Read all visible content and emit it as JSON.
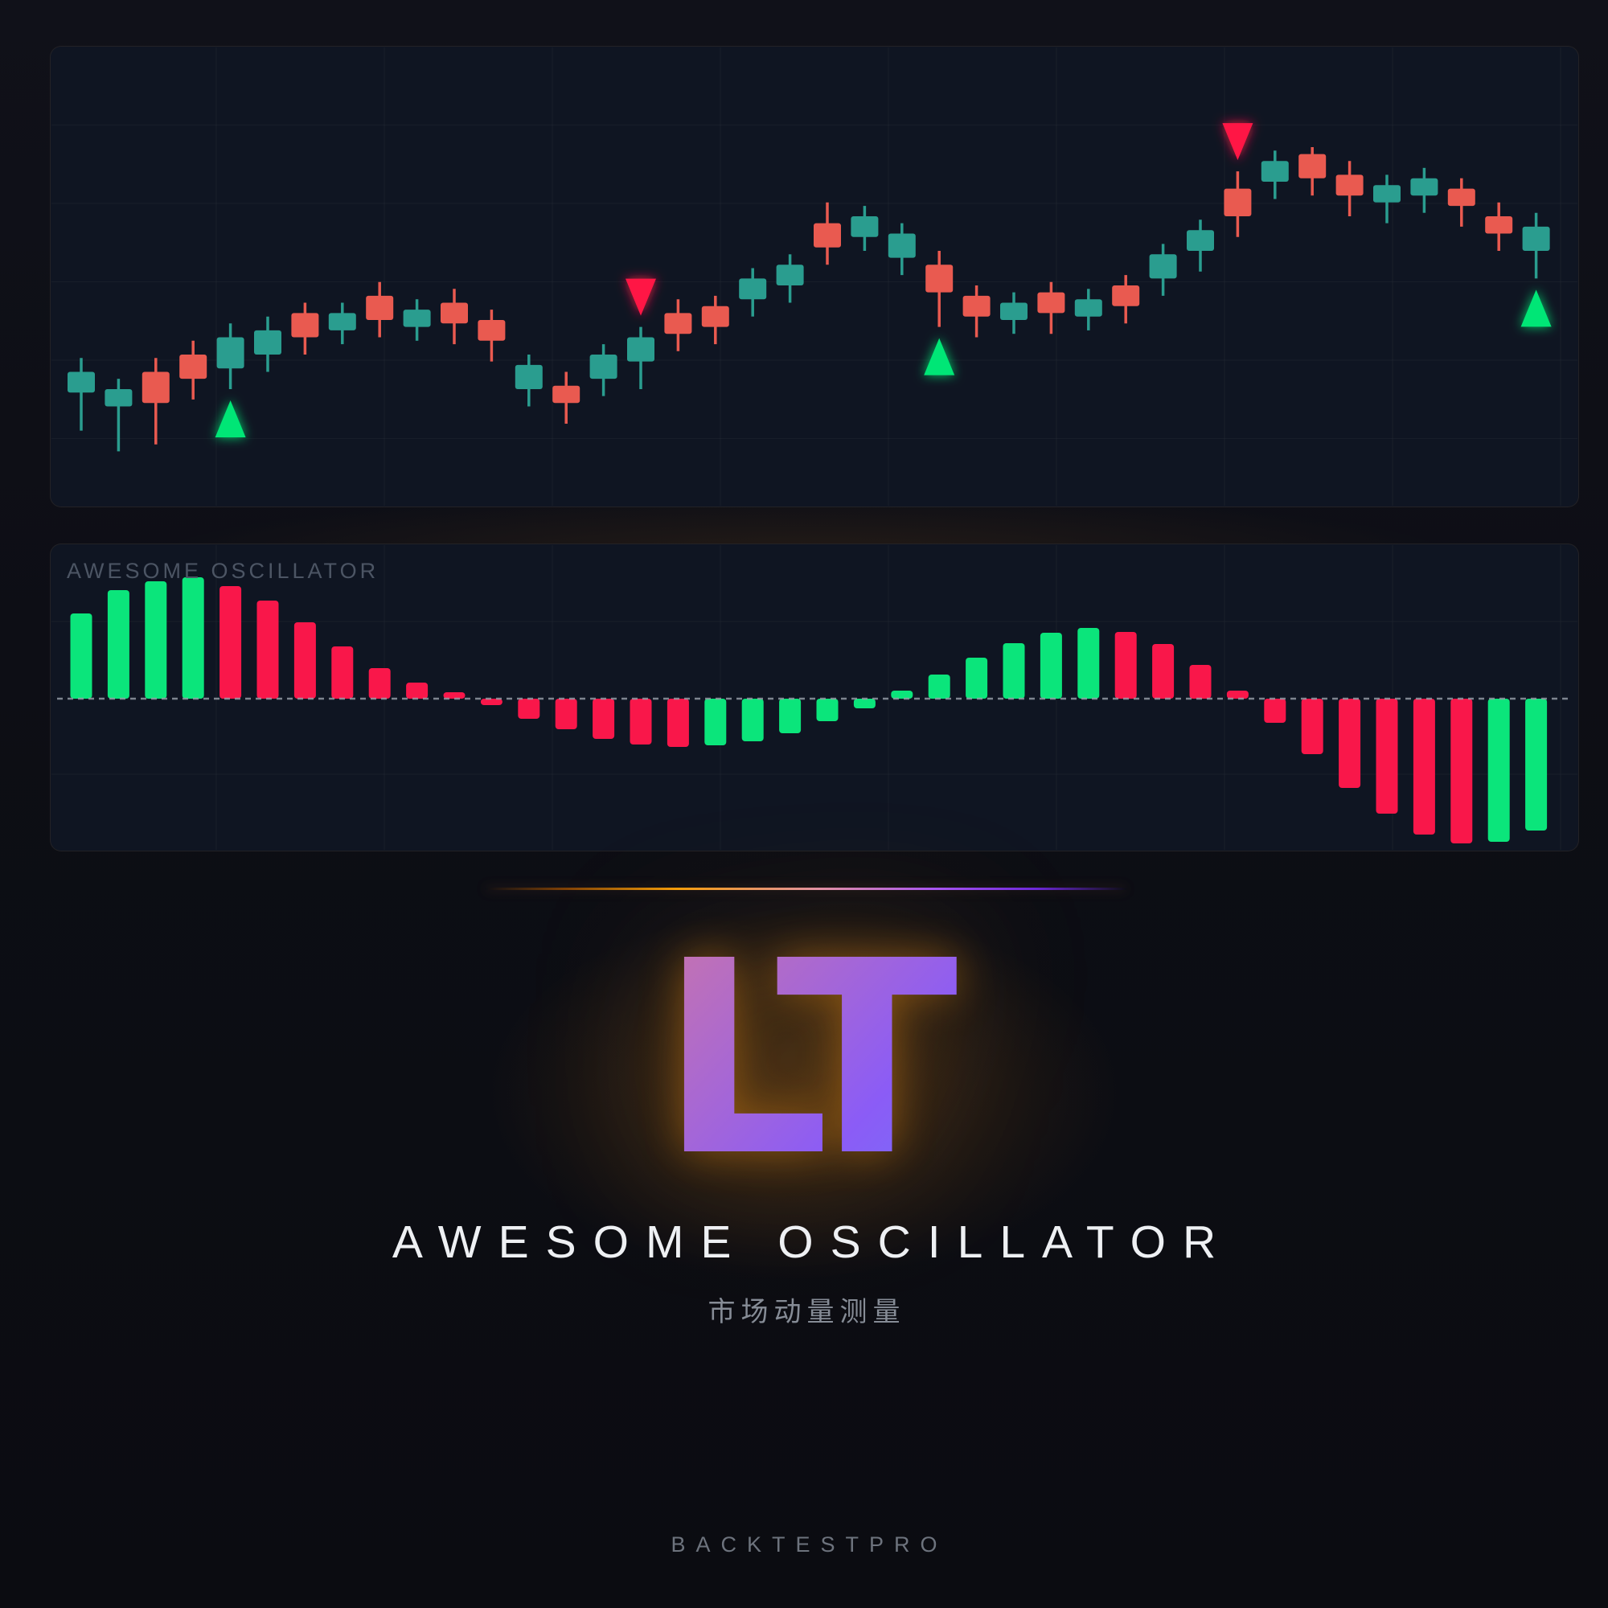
{
  "branding": {
    "logo_text": "LT",
    "title": "AWESOME OSCILLATOR",
    "subtitle_zh": "市场动量测量",
    "footer": "BACKTESTPRO"
  },
  "oscillator_panel": {
    "label": "AWESOME OSCILLATOR"
  },
  "colors": {
    "page_bg": "#0d0e15",
    "panel_bg": "#0f1522",
    "candle_up": "#2a9d8f",
    "candle_down": "#e95a50",
    "osc_up": "#0be57b",
    "osc_down": "#f9174a",
    "marker_buy": "#00e676",
    "marker_sell": "#ff1744",
    "zero_line": "#9aa1ab",
    "grid": "rgba(255,255,255,0.04)",
    "osc_label": "#4c5564",
    "logo_gradient": [
      "#f59e0b",
      "#d4799e",
      "#8b5cf6",
      "#38a4ff"
    ],
    "divider_gradient": [
      "#7c3f06",
      "#f59e0b",
      "#e292a8",
      "#a855f7",
      "#6d28d9"
    ]
  },
  "chart_data": [
    {
      "type": "candlestick",
      "panel": "price",
      "ylim": [
        0,
        100
      ],
      "grid": true,
      "candles_format": [
        "open",
        "close",
        "high",
        "low"
      ],
      "candles": [
        [
          29,
          35,
          39,
          18
        ],
        [
          25,
          30,
          33,
          12
        ],
        [
          35,
          26,
          39,
          14
        ],
        [
          40,
          33,
          44,
          27
        ],
        [
          36,
          45,
          49,
          30
        ],
        [
          40,
          47,
          51,
          35
        ],
        [
          52,
          45,
          55,
          40
        ],
        [
          47,
          52,
          55,
          43
        ],
        [
          57,
          50,
          61,
          45
        ],
        [
          48,
          53,
          56,
          44
        ],
        [
          55,
          49,
          59,
          43
        ],
        [
          50,
          44,
          53,
          38
        ],
        [
          30,
          37,
          40,
          25
        ],
        [
          31,
          26,
          35,
          20
        ],
        [
          33,
          40,
          43,
          28
        ],
        [
          38,
          45,
          48,
          30
        ],
        [
          52,
          46,
          56,
          41
        ],
        [
          54,
          48,
          57,
          43
        ],
        [
          56,
          62,
          65,
          51
        ],
        [
          60,
          66,
          69,
          55
        ],
        [
          78,
          71,
          84,
          66
        ],
        [
          74,
          80,
          83,
          70
        ],
        [
          68,
          75,
          78,
          63
        ],
        [
          66,
          58,
          70,
          48
        ],
        [
          57,
          51,
          60,
          45
        ],
        [
          50,
          55,
          58,
          46
        ],
        [
          58,
          52,
          61,
          46
        ],
        [
          51,
          56,
          59,
          47
        ],
        [
          60,
          54,
          63,
          49
        ],
        [
          62,
          69,
          72,
          57
        ],
        [
          70,
          76,
          79,
          64
        ],
        [
          88,
          80,
          93,
          74
        ],
        [
          90,
          96,
          99,
          85
        ],
        [
          98,
          91,
          100,
          86
        ],
        [
          92,
          86,
          96,
          80
        ],
        [
          84,
          89,
          92,
          78
        ],
        [
          86,
          91,
          94,
          81
        ],
        [
          88,
          83,
          91,
          77
        ],
        [
          80,
          75,
          84,
          70
        ],
        [
          70,
          77,
          81,
          62
        ]
      ],
      "signals": [
        {
          "candle": 4,
          "type": "buy"
        },
        {
          "candle": 15,
          "type": "sell"
        },
        {
          "candle": 23,
          "type": "buy"
        },
        {
          "candle": 31,
          "type": "sell"
        },
        {
          "candle": 39,
          "type": "buy"
        }
      ]
    },
    {
      "type": "bar",
      "panel": "oscillator",
      "title": "AWESOME OSCILLATOR",
      "zero_line": true,
      "color_rule": "green-if-rising-else-red",
      "values": [
        106,
        135,
        146,
        151,
        140,
        122,
        95,
        65,
        38,
        20,
        8,
        -8,
        -25,
        -38,
        -50,
        -57,
        -60,
        -58,
        -53,
        -43,
        -28,
        -12,
        10,
        30,
        51,
        69,
        82,
        88,
        83,
        68,
        42,
        10,
        -30,
        -69,
        -111,
        -143,
        -169,
        -180,
        -178,
        -164
      ]
    }
  ]
}
